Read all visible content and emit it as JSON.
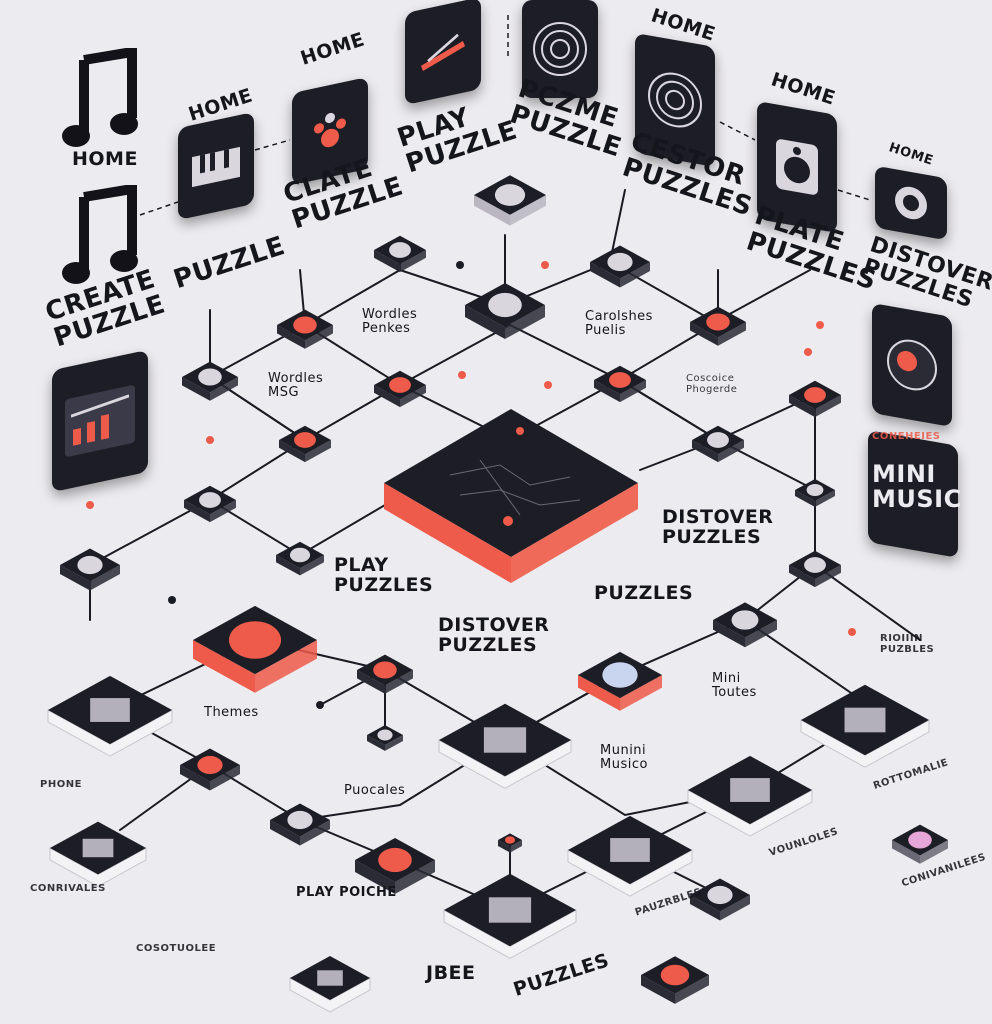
{
  "colors": {
    "background": "#ecebef",
    "tile_dark": "#1d1d26",
    "tile_side": "#2b2b36",
    "accent": "#ef5b4a",
    "line": "#1a1a22",
    "label": "#15151c"
  },
  "labels": [
    {
      "id": "home-1",
      "text": "HOME",
      "size": "med"
    },
    {
      "id": "home-2",
      "text": "HOME",
      "size": "med"
    },
    {
      "id": "home-3",
      "text": "HOME",
      "size": "med"
    },
    {
      "id": "home-4",
      "text": "HOME",
      "size": "med"
    },
    {
      "id": "home-5",
      "text": "HOME",
      "size": "med"
    },
    {
      "id": "home-6",
      "text": "HOME",
      "size": "sm"
    },
    {
      "id": "create-puzzle",
      "text": "CREATE\nPUZZLE",
      "size": "big"
    },
    {
      "id": "puzzle-left",
      "text": "PUZZLE",
      "size": "big"
    },
    {
      "id": "clate-puzzle",
      "text": "CLATE\nPUZZLE",
      "size": "big"
    },
    {
      "id": "play-puzzle-top",
      "text": "PLAY\nPUZZLE",
      "size": "big"
    },
    {
      "id": "pczme-puzzle",
      "text": "PCZME\nPUZZLE",
      "size": "big"
    },
    {
      "id": "cestor-puzzles",
      "text": "CESTOR\nPUZZLES",
      "size": "big"
    },
    {
      "id": "plate-puzzles",
      "text": "PLATE\nPUZZLES",
      "size": "big"
    },
    {
      "id": "distover-puzzles-top",
      "text": "DISTOVER\nPUZZLES",
      "size": "big"
    },
    {
      "id": "wordles-1",
      "text": "Wordles\nPenkes",
      "size": "sm"
    },
    {
      "id": "wordles-2",
      "text": "Wordles\nMSG",
      "size": "sm"
    },
    {
      "id": "carolshes",
      "text": "Carolshes\nPuelis",
      "size": "sm"
    },
    {
      "id": "coscoice",
      "text": "Coscoice\nPhogerde",
      "size": "xs"
    },
    {
      "id": "distover-puzzles-right",
      "text": "DISTOVER\nPUZZLES",
      "size": "med"
    },
    {
      "id": "play-puzzles",
      "text": "PLAY\nPUZZLES",
      "size": "med"
    },
    {
      "id": "puzzles-mid",
      "text": "PUZZLES",
      "size": "med"
    },
    {
      "id": "distover-puzzles-center",
      "text": "DISTOVER\nPUZZLES",
      "size": "med"
    },
    {
      "id": "mini-music",
      "text": "MINI\nMUSIC",
      "size": "big"
    },
    {
      "id": "coneheies",
      "text": "CONEHEIES",
      "size": "xs"
    },
    {
      "id": "rioiiin-puzbles",
      "text": "RIOIIIN\nPUZBLES",
      "size": "xs"
    },
    {
      "id": "themes",
      "text": "Themes",
      "size": "sm"
    },
    {
      "id": "mini-tourtes",
      "text": "Mini\nToutes",
      "size": "sm"
    },
    {
      "id": "munini-musico",
      "text": "Munini\nMusico",
      "size": "sm"
    },
    {
      "id": "puocales",
      "text": "Puocales",
      "size": "sm"
    },
    {
      "id": "phone",
      "text": "PHONE",
      "size": "xs"
    },
    {
      "id": "rottomalie",
      "text": "ROTTOMALIE",
      "size": "xs"
    },
    {
      "id": "conrivales",
      "text": "CONRIVALES",
      "size": "xs"
    },
    {
      "id": "cosotuolee",
      "text": "COSOTUOLEE",
      "size": "xs"
    },
    {
      "id": "play-poiche",
      "text": "PLAY POICHE",
      "size": "sm"
    },
    {
      "id": "jbee",
      "text": "JBEE",
      "size": "med"
    },
    {
      "id": "puzzles-bottom",
      "text": "PUZZLES",
      "size": "med"
    },
    {
      "id": "pauzrbles",
      "text": "PAUZRBLES",
      "size": "xs"
    },
    {
      "id": "vounloles",
      "text": "VOUNLOLES",
      "size": "xs"
    },
    {
      "id": "conivanilees",
      "text": "CONIVANILEES",
      "size": "xs"
    }
  ]
}
